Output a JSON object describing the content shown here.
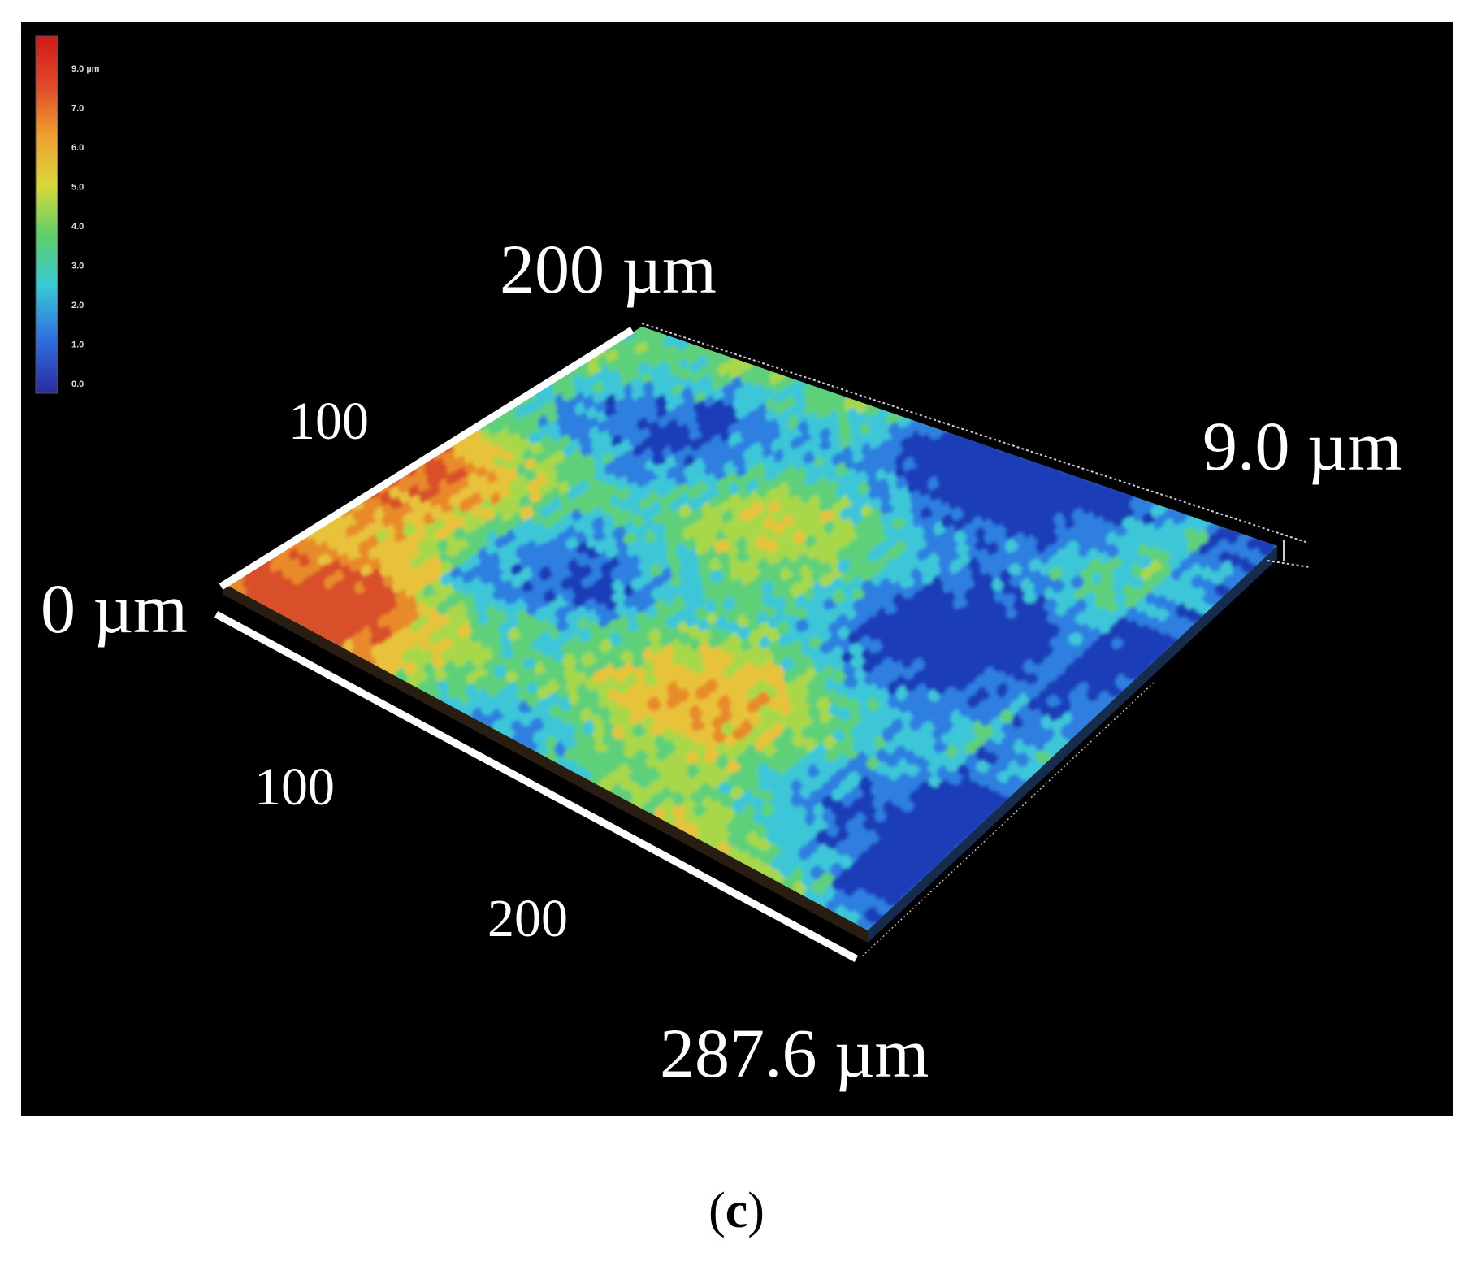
{
  "figure": {
    "background": "#000000",
    "surface_colors": [
      "#1a3db8",
      "#2f7fe0",
      "#3cc6d8",
      "#5fd07a",
      "#a8d84a",
      "#e8c23a",
      "#e88a2c",
      "#d8502a"
    ],
    "colorbar": {
      "gradient": [
        "#2a2aa0",
        "#2f6fe0",
        "#38c8d8",
        "#5ccf6a",
        "#d8d83a",
        "#f0a030",
        "#e04a2a",
        "#d01818"
      ],
      "tick_labels": [
        "9.0 µm",
        "7.0",
        "6.0",
        "5.0",
        "4.0",
        "3.0",
        "2.0",
        "1.0",
        "0.0"
      ]
    },
    "axis_labels": {
      "top_max": "200 µm",
      "top_mid": "100",
      "origin": "0 µm",
      "bottom_100": "100",
      "bottom_200": "200",
      "bottom_max": "287.6 µm",
      "height_max": "9.0 µm"
    }
  },
  "caption": {
    "open": "(",
    "letter": "c",
    "close": ")"
  }
}
